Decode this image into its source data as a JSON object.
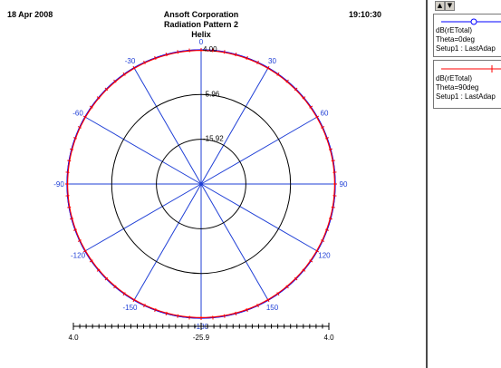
{
  "header": {
    "date": "18 Apr 2008",
    "time": "19:10:30",
    "company": "Ansoft Corporation",
    "plot_name": "Radiation Pattern 2",
    "design": "Helix"
  },
  "legend": {
    "scroll_up_icon": "up-arrow",
    "scroll_down_icon": "down-arrow",
    "entries": [
      {
        "quantity": "dB(rETotal)",
        "param": "Theta=0deg",
        "setup": "Setup1 : LastAdap",
        "color": "#0000ff",
        "marker": "circle"
      },
      {
        "quantity": "dB(rETotal)",
        "param": "Theta=90deg",
        "setup": "Setup1 : LastAdap",
        "color": "#ff0000",
        "marker": "plus"
      }
    ]
  },
  "colors": {
    "spoke": "#1f3fd6",
    "ring": "#000000",
    "angle_label": "#1f3fd6",
    "scale_bar": "#000000"
  },
  "chart_data": {
    "type": "polar",
    "title": "Radiation Pattern 2",
    "angle_labels": [
      "0",
      "30",
      "60",
      "90",
      "120",
      "150",
      "-180",
      "-150",
      "-120",
      "-90",
      "-60",
      "-30"
    ],
    "angles_deg": [
      0,
      30,
      60,
      90,
      120,
      150,
      180,
      210,
      240,
      270,
      300,
      330
    ],
    "ring_labels": [
      "4.00",
      "-5.96",
      "-15.92"
    ],
    "ring_values": [
      4.0,
      -5.96,
      -15.92
    ],
    "r_range": [
      -25.9,
      4.0
    ],
    "scale_labels": [
      "4.0",
      "-25.9",
      "4.0"
    ],
    "series": [
      {
        "name": "dB(rETotal) Theta=0deg",
        "values": [
          4.0,
          4.0,
          4.0,
          4.0,
          4.0,
          4.0,
          4.0,
          4.0,
          4.0,
          4.0,
          4.0,
          4.0
        ]
      },
      {
        "name": "dB(rETotal) Theta=90deg",
        "values": [
          4.0,
          4.0,
          4.0,
          4.0,
          4.0,
          4.0,
          4.0,
          4.0,
          4.0,
          4.0,
          4.0,
          4.0
        ]
      }
    ]
  }
}
